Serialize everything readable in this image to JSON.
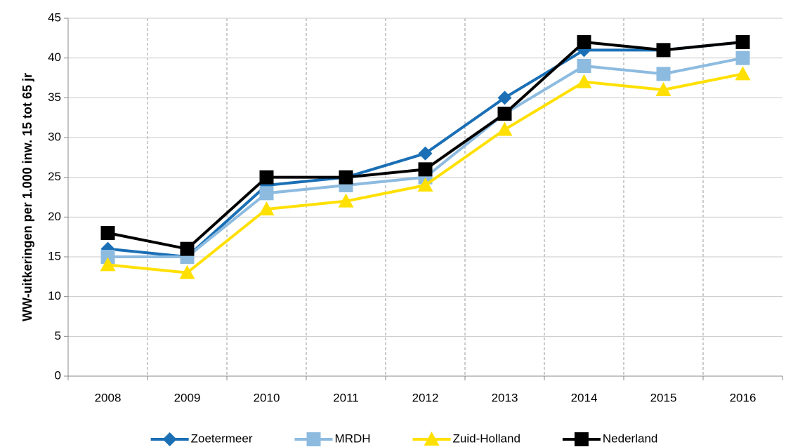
{
  "chart_data": {
    "type": "line",
    "y_label": "WW-uitkeringen per 1.000 inw. 15 tot 65 jr",
    "categories": [
      "2008",
      "2009",
      "2010",
      "2011",
      "2012",
      "2013",
      "2014",
      "2015",
      "2016"
    ],
    "series": [
      {
        "name": "Zoetermeer",
        "color": "#1a6fb5",
        "marker": "diamond",
        "values": [
          16,
          15,
          24,
          25,
          28,
          35,
          41,
          41,
          42
        ]
      },
      {
        "name": "MRDH",
        "color": "#8dbbe0",
        "marker": "square",
        "values": [
          15,
          15,
          23,
          24,
          25,
          33,
          39,
          38,
          40
        ]
      },
      {
        "name": "Zuid-Holland",
        "color": "#ffe000",
        "marker": "triangle",
        "values": [
          14,
          13,
          21,
          22,
          24,
          31,
          37,
          36,
          38
        ]
      },
      {
        "name": "Nederland",
        "color": "#000000",
        "marker": "square",
        "values": [
          18,
          16,
          25,
          25,
          26,
          33,
          42,
          41,
          42
        ]
      }
    ],
    "ylim": [
      0,
      45
    ],
    "yticks": [
      0,
      5,
      10,
      15,
      20,
      25,
      30,
      35,
      40,
      45
    ],
    "grid": true,
    "legend": "bottom"
  }
}
